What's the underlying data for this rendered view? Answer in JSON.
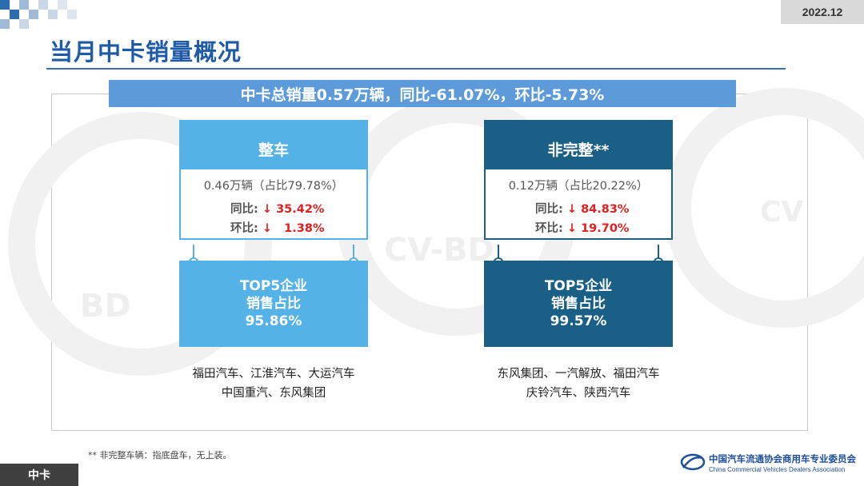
{
  "header": {
    "date": "2022.12",
    "title": "当月中卡销量概况"
  },
  "summary": {
    "text": "中卡总销量0.57万辆，同比-61.07%，环比-5.73%"
  },
  "cards": [
    {
      "header": "整车",
      "volume": "0.46万辆（占比79.78%）",
      "yoy_label": "同比:",
      "yoy_value": "↓ 35.42%",
      "mom_label": "环比:",
      "mom_value": "↓   1.38%",
      "top5_line1": "TOP5企业",
      "top5_line2": "销售占比",
      "top5_value": "95.86%",
      "companies_line1": "福田汽车、江淮汽车、大运汽车",
      "companies_line2": "中国重汽、东风集团",
      "color": "#55b2e6"
    },
    {
      "header": "非完整**",
      "volume": "0.12万辆（占比20.22%）",
      "yoy_label": "同比:",
      "yoy_value": "↓ 84.83%",
      "mom_label": "环比:",
      "mom_value": "↓ 19.70%",
      "top5_line1": "TOP5企业",
      "top5_line2": "销售占比",
      "top5_value": "99.57%",
      "companies_line1": "东风集团、一汽解放、福田汽车",
      "companies_line2": "庆铃汽车、陕西汽车",
      "color": "#1a5f86"
    }
  ],
  "footnote": "** 非完整车辆：指底盘车，无上装。",
  "footer": {
    "section_tag": "中卡",
    "assoc_name_cn": "中国汽车流通协会商用车专业委员会",
    "assoc_name_en": "China Commercial Vehicles Dealers Association"
  },
  "colors": {
    "title": "#1f5aa6",
    "banner": "#5c9ad9",
    "decline": "#e02020"
  }
}
